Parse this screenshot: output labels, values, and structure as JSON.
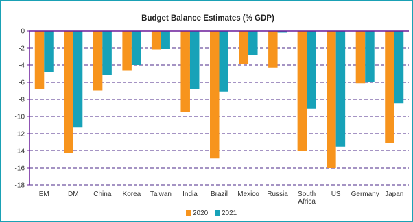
{
  "chart_data": {
    "type": "bar",
    "title": "Budget Balance Estimates (% GDP)",
    "xlabel": "",
    "ylabel": "",
    "ylim": [
      -18,
      0
    ],
    "yticks": [
      0,
      -2,
      -4,
      -6,
      -8,
      -10,
      -12,
      -14,
      -16,
      -18
    ],
    "grid": "dashed horizontal",
    "legend_position": "bottom",
    "categories": [
      [
        "EM"
      ],
      [
        "DM"
      ],
      [
        "China"
      ],
      [
        "Korea"
      ],
      [
        "Taiwan"
      ],
      [
        "India"
      ],
      [
        "Brazil"
      ],
      [
        "Mexico"
      ],
      [
        "Russia"
      ],
      [
        "South",
        "Africa"
      ],
      [
        "US"
      ],
      [
        "Germany"
      ],
      [
        "Japan"
      ]
    ],
    "series": [
      {
        "name": "2020",
        "color": "#f7941d",
        "values": [
          -6.8,
          -14.3,
          -7.0,
          -4.6,
          -2.2,
          -9.5,
          -14.9,
          -3.9,
          -4.3,
          -14.0,
          -16.0,
          -6.1,
          -13.1
        ]
      },
      {
        "name": "2021",
        "color": "#17a2b8",
        "values": [
          -4.8,
          -11.3,
          -5.2,
          -4.0,
          -2.1,
          -6.8,
          -7.1,
          -2.8,
          -0.2,
          -9.1,
          -13.5,
          -6.0,
          -8.5
        ]
      }
    ],
    "colors": {
      "axis": "#6a1b9a",
      "grid": "#4b2a8a",
      "border": "#1aa1b5"
    }
  }
}
